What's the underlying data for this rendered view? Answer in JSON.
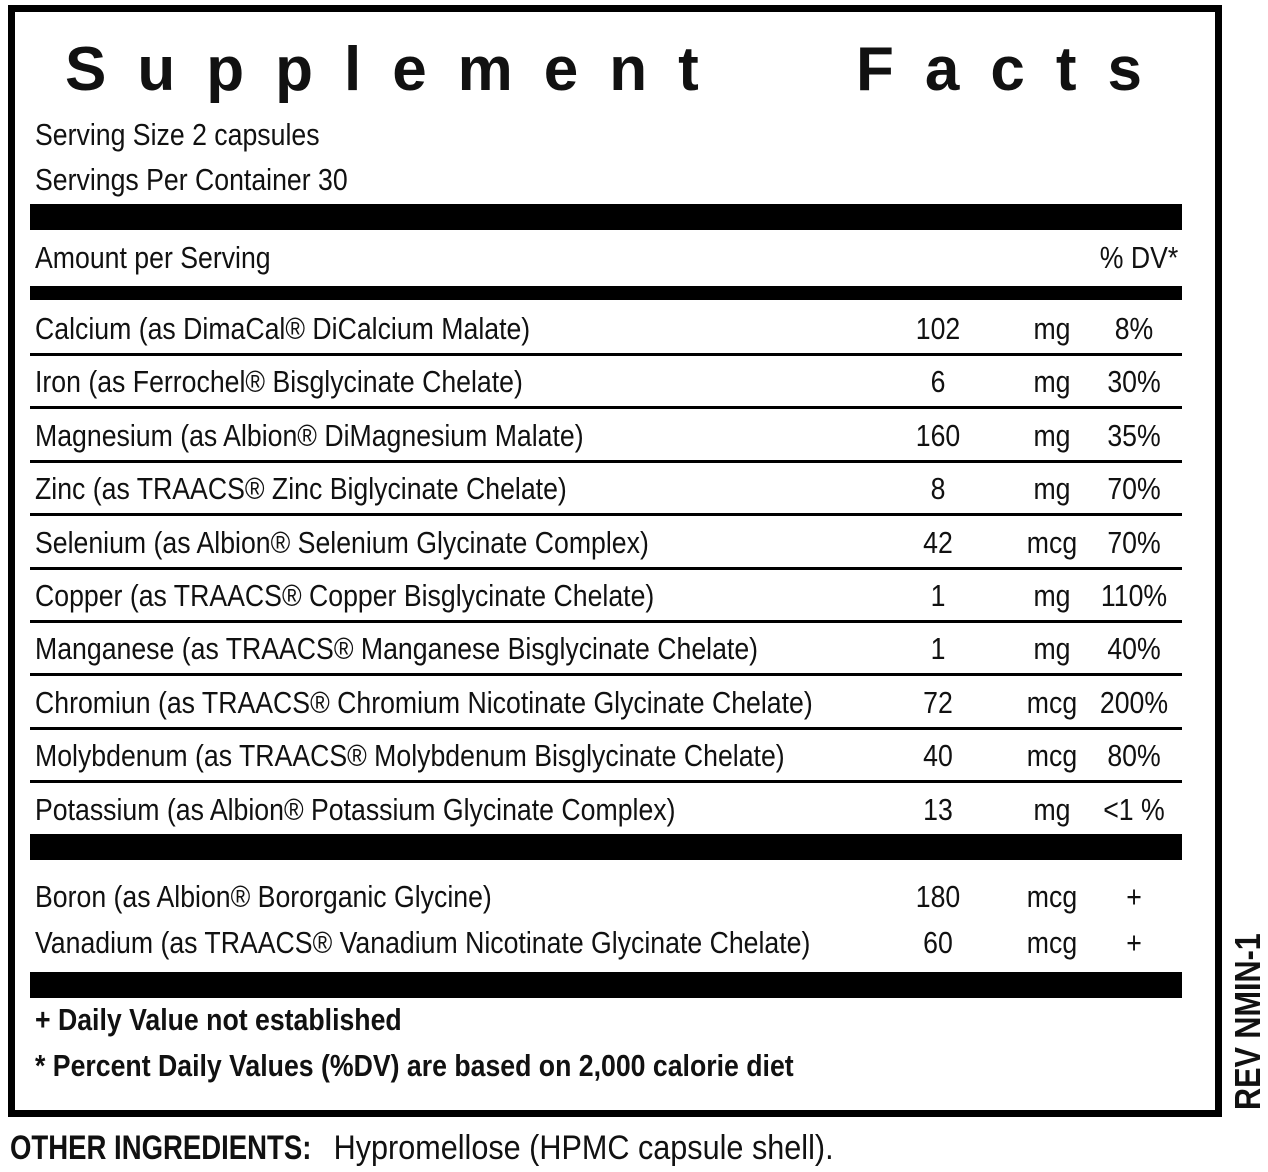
{
  "title": "Supplement Facts",
  "serving_size": "Serving Size  2 capsules",
  "servings_per_container": "Servings Per Container 30",
  "header": {
    "amount_label": "Amount per Serving",
    "dv_label": "% DV*"
  },
  "nutrients": [
    {
      "name": "Calcium (as DimaCal® DiCalcium Malate)",
      "amount": "102",
      "unit": "mg",
      "dv": "8%"
    },
    {
      "name": "Iron (as Ferrochel® Bisglycinate Chelate)",
      "amount": "6",
      "unit": "mg",
      "dv": "30%"
    },
    {
      "name": "Magnesium (as Albion® DiMagnesium Malate)",
      "amount": "160",
      "unit": "mg",
      "dv": "35%"
    },
    {
      "name": "Zinc (as TRAACS® Zinc Biglycinate Chelate)",
      "amount": "8",
      "unit": "mg",
      "dv": "70%"
    },
    {
      "name": "Selenium (as Albion® Selenium Glycinate Complex)",
      "amount": "42",
      "unit": "mcg",
      "dv": "70%"
    },
    {
      "name": "Copper (as TRAACS® Copper Bisglycinate Chelate)",
      "amount": "1",
      "unit": "mg",
      "dv": "110%"
    },
    {
      "name": "Manganese (as TRAACS® Manganese Bisglycinate Chelate)",
      "amount": "1",
      "unit": "mg",
      "dv": "40%"
    },
    {
      "name": "Chromiun (as TRAACS® Chromium Nicotinate Glycinate Chelate)",
      "amount": "72",
      "unit": "mcg",
      "dv": "200%"
    },
    {
      "name": "Molybdenum (as TRAACS® Molybdenum Bisglycinate Chelate)",
      "amount": "40",
      "unit": "mcg",
      "dv": "80%"
    },
    {
      "name": "Potassium (as Albion® Potassium Glycinate Complex)",
      "amount": "13",
      "unit": "mg",
      "dv": "<1 %"
    }
  ],
  "other_nutrients": [
    {
      "name": "Boron (as Albion® Bororganic Glycine)",
      "amount": "180",
      "unit": "mcg",
      "dv": "+"
    },
    {
      "name": "Vanadium (as TRAACS® Vanadium Nicotinate Glycinate Chelate)",
      "amount": "60",
      "unit": "mcg",
      "dv": "+"
    }
  ],
  "footnotes": [
    "+ Daily Value not established",
    "*  Percent Daily Values (%DV) are based on 2,000 calorie diet"
  ],
  "revision": "REV NMIN-1",
  "other_ingredients": {
    "label": "OTHER INGREDIENTS:",
    "text": " Hypromellose (HPMC capsule shell)."
  }
}
